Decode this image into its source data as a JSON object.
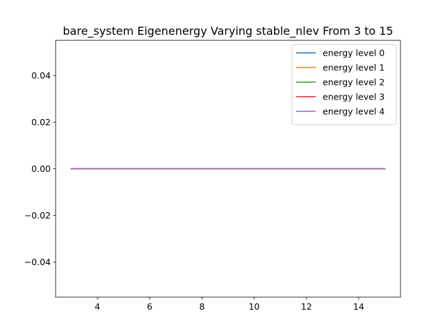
{
  "chart_data": {
    "type": "line",
    "title": "bare_system Eigenenergy Varying stable_nlev From 3 to 15",
    "xlabel": "",
    "ylabel": "",
    "x": [
      3,
      4,
      5,
      6,
      7,
      8,
      9,
      10,
      11,
      12,
      13,
      14,
      15
    ],
    "series": [
      {
        "name": "energy level 0",
        "color": "#1f77b4",
        "values": [
          0,
          0,
          0,
          0,
          0,
          0,
          0,
          0,
          0,
          0,
          0,
          0,
          0
        ]
      },
      {
        "name": "energy level 1",
        "color": "#ff7f0e",
        "values": [
          0,
          0,
          0,
          0,
          0,
          0,
          0,
          0,
          0,
          0,
          0,
          0,
          0
        ]
      },
      {
        "name": "energy level 2",
        "color": "#2ca02c",
        "values": [
          0,
          0,
          0,
          0,
          0,
          0,
          0,
          0,
          0,
          0,
          0,
          0,
          0
        ]
      },
      {
        "name": "energy level 3",
        "color": "#d62728",
        "values": [
          0,
          0,
          0,
          0,
          0,
          0,
          0,
          0,
          0,
          0,
          0,
          0,
          0
        ]
      },
      {
        "name": "energy level 4",
        "color": "#9467bd",
        "values": [
          0,
          0,
          0,
          0,
          0,
          0,
          0,
          0,
          0,
          0,
          0,
          0,
          0
        ]
      }
    ],
    "xlim": [
      2.4,
      15.6
    ],
    "ylim": [
      -0.055,
      0.055
    ],
    "xticks": [
      4,
      6,
      8,
      10,
      12,
      14
    ],
    "xtick_labels": [
      "4",
      "6",
      "8",
      "10",
      "12",
      "14"
    ],
    "yticks": [
      -0.04,
      -0.02,
      0.0,
      0.02,
      0.04
    ],
    "ytick_labels": [
      "−0.04",
      "−0.02",
      "0.00",
      "0.02",
      "0.04"
    ],
    "grid": false,
    "legend_position": "top-right"
  }
}
